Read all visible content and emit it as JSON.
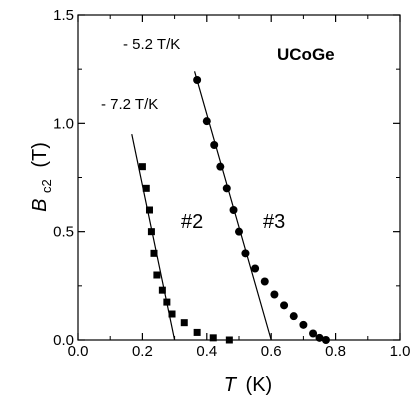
{
  "chart_data": {
    "type": "scatter",
    "title": "",
    "xlabel_symbol": "T",
    "xlabel_unit": "(K)",
    "ylabel_symbol": "B",
    "ylabel_subscript": "c2",
    "ylabel_unit": "(T)",
    "xlim": [
      0.0,
      1.0
    ],
    "ylim": [
      0.0,
      1.5
    ],
    "x_ticks": [
      0.0,
      0.2,
      0.4,
      0.6,
      0.8,
      1.0
    ],
    "x_tick_labels": [
      "0.0",
      "0.2",
      "0.4",
      "0.6",
      "0.8",
      "1.0"
    ],
    "y_ticks": [
      0.0,
      0.5,
      1.0,
      1.5
    ],
    "y_tick_labels": [
      "0.0",
      "0.5",
      "1.0",
      "1.5"
    ],
    "grid": false,
    "legend": "none",
    "series": [
      {
        "label": "#2",
        "marker": "square",
        "points": [
          [
            0.2,
            0.8
          ],
          [
            0.212,
            0.7
          ],
          [
            0.222,
            0.6
          ],
          [
            0.228,
            0.5
          ],
          [
            0.236,
            0.4
          ],
          [
            0.245,
            0.3
          ],
          [
            0.262,
            0.23
          ],
          [
            0.276,
            0.175
          ],
          [
            0.292,
            0.12
          ],
          [
            0.33,
            0.08
          ],
          [
            0.37,
            0.035
          ],
          [
            0.42,
            0.01
          ],
          [
            0.47,
            0.0
          ]
        ],
        "fit_line": {
          "x": [
            0.167,
            0.3
          ],
          "y": [
            0.95,
            0.0
          ]
        },
        "slope_label": "- 7.2 T/K"
      },
      {
        "label": "#3",
        "marker": "circle",
        "points": [
          [
            0.37,
            1.2
          ],
          [
            0.4,
            1.01
          ],
          [
            0.423,
            0.9
          ],
          [
            0.442,
            0.8
          ],
          [
            0.462,
            0.7
          ],
          [
            0.483,
            0.6
          ],
          [
            0.5,
            0.5
          ],
          [
            0.52,
            0.4
          ],
          [
            0.55,
            0.33
          ],
          [
            0.58,
            0.27
          ],
          [
            0.61,
            0.21
          ],
          [
            0.64,
            0.16
          ],
          [
            0.67,
            0.11
          ],
          [
            0.7,
            0.07
          ],
          [
            0.73,
            0.03
          ],
          [
            0.75,
            0.01
          ],
          [
            0.77,
            0.0
          ]
        ],
        "fit_line": {
          "x": [
            0.362,
            0.6
          ],
          "y": [
            1.24,
            0.0
          ]
        },
        "slope_label": "- 5.2 T/K"
      }
    ],
    "material_label": "UCoGe"
  }
}
